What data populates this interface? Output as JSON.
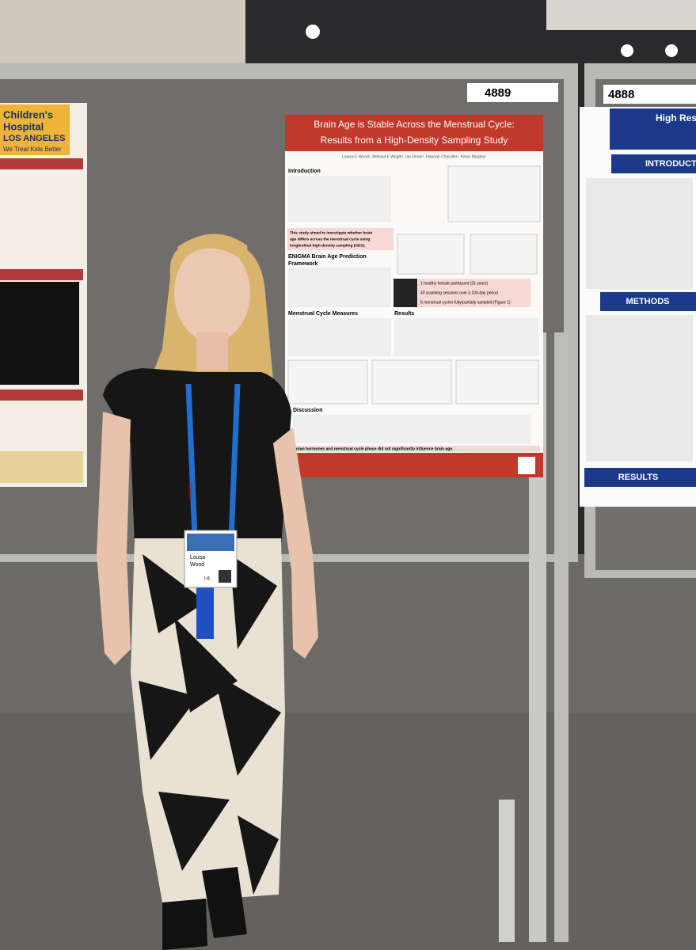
{
  "boards": [
    "4889",
    "4888"
  ],
  "left_poster": {
    "name_line1": "Children's",
    "name_line2": "Hospital",
    "name_line3": "LOS ANGELES",
    "tagline": "We Treat Kids Better"
  },
  "center_poster": {
    "title_line1": "Brain Age is Stable Across the Menstrual Cycle:",
    "title_line2": "Results from a High-Density Sampling Study",
    "authors": "Louisa E Wood¹, Melissa E Wright¹, Ian Driver¹, Hannah Chandler¹, Kevin Murphy¹",
    "sections": [
      "Introduction",
      "ENIGMA Brain Age Prediction",
      "Framework",
      "Menstrual Cycle Measures",
      "Results",
      "Discussion"
    ],
    "aim": [
      "This study aimed to investigate whether brain",
      "age differs across the menstrual cycle using",
      "longitudinal high-density sampling (HDS)."
    ],
    "stats": [
      "1 healthy female participant (31 years)",
      "43 scanning sessions over a 100-day period",
      "5 menstrual cycles fully/partially sampled (Figure 1)"
    ],
    "conclusion": "Ovarian hormones and menstrual cycle phase did not significantly influence brain age."
  },
  "right_poster": {
    "title": "High Res",
    "sections": [
      "INTRODUCTION",
      "METHODS",
      "RESULTS"
    ]
  },
  "badge": {
    "first": "Lousa",
    "last": "Wood",
    "code": "I-6",
    "lanyard": "Canon"
  }
}
